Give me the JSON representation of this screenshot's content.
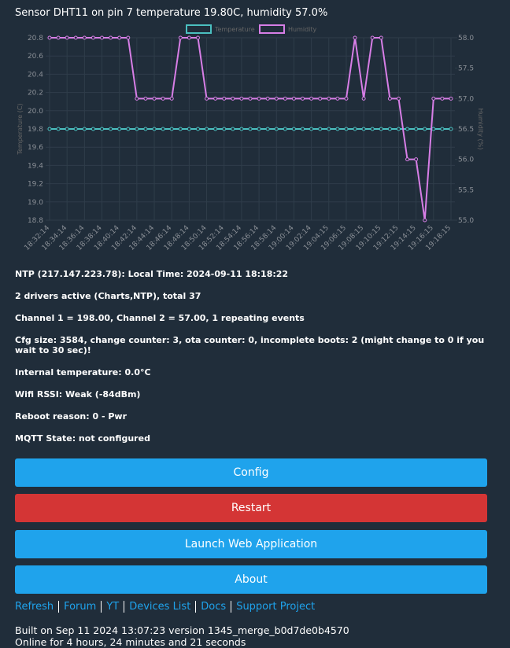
{
  "header": {
    "title": "Sensor DHT11 on pin 7 temperature 19.80C, humidity 57.0%"
  },
  "chart_data": {
    "type": "line",
    "categories": [
      "18:32:14",
      null,
      "18:34:14",
      null,
      "18:36:14",
      null,
      "18:38:14",
      null,
      "18:40:14",
      null,
      "18:42:14",
      null,
      "18:44:14",
      null,
      "18:46:14",
      null,
      "18:48:14",
      null,
      "18:50:14",
      null,
      "18:52:14",
      null,
      "18:54:14",
      null,
      "18:56:14",
      null,
      "18:58:14",
      null,
      "19:00:14",
      null,
      "19:02:14",
      null,
      "19:04:15",
      null,
      "19:06:15",
      null,
      "19:08:15",
      null,
      "19:10:15",
      null,
      "19:12:15",
      null,
      "19:14:15",
      null,
      "19:16:15",
      null,
      "19:18:15"
    ],
    "series": [
      {
        "name": "Temperature",
        "color": "#4bc0c0",
        "values": [
          19.8,
          19.8,
          19.8,
          19.8,
          19.8,
          19.8,
          19.8,
          19.8,
          19.8,
          19.8,
          19.8,
          19.8,
          19.8,
          19.8,
          19.8,
          19.8,
          19.8,
          19.8,
          19.8,
          19.8,
          19.8,
          19.8,
          19.8,
          19.8,
          19.8,
          19.8,
          19.8,
          19.8,
          19.8,
          19.8,
          19.8,
          19.8,
          19.8,
          19.8,
          19.8,
          19.8,
          19.8,
          19.8,
          19.8,
          19.8,
          19.8,
          19.8,
          19.8,
          19.8,
          19.8,
          19.8,
          19.8
        ]
      },
      {
        "name": "Humidity",
        "color": "#d77ee6",
        "axis": "y2",
        "values": [
          58,
          58,
          58,
          58,
          58,
          58,
          58,
          58,
          58,
          58,
          57,
          57,
          57,
          57,
          57,
          58,
          58,
          58,
          57,
          57,
          57,
          57,
          57,
          57,
          57,
          57,
          57,
          57,
          57,
          57,
          57,
          57,
          57,
          57,
          57,
          58,
          57,
          58,
          58,
          57,
          57,
          56,
          56,
          55,
          57,
          57,
          57
        ]
      }
    ],
    "ylabel": "Temperature (C)",
    "y2label": "Humidity (%)",
    "ylim": [
      18.8,
      20.8
    ],
    "yticks": [
      18.8,
      {
        "value": 19,
        "label": "19.0"
      },
      19.2,
      19.4,
      19.6,
      19.8,
      {
        "value": 20,
        "label": "20.0"
      },
      20.2,
      20.4,
      20.6,
      20.8
    ],
    "y2lim": [
      55,
      58
    ],
    "y2ticks": [
      {
        "value": 55,
        "label": "55.0"
      },
      55.5,
      {
        "value": 56,
        "label": "56.0"
      },
      56.5,
      {
        "value": 57,
        "label": "57.0"
      },
      57.5,
      {
        "value": 58,
        "label": "58.0"
      }
    ],
    "grid": true,
    "legend": "top"
  },
  "status": [
    "NTP (217.147.223.78): Local Time: 2024-09-11 18:18:22",
    "2 drivers active (Charts,NTP), total 37",
    "Channel 1 = 198.00, Channel 2 = 57.00, 1 repeating events",
    "Cfg size: 3584, change counter: 3, ota counter: 0, incomplete boots: 2 (might change to 0 if you wait to 30 sec)!",
    "Internal temperature: 0.0°C",
    "Wifi RSSI: Weak (-84dBm)",
    "Reboot reason: 0 - Pwr",
    "MQTT State: not configured"
  ],
  "buttons": [
    "Config",
    "Restart",
    "Launch Web Application",
    "About"
  ],
  "links": [
    "Refresh",
    "Forum",
    "YT",
    "Devices List",
    "Docs",
    "Support Project"
  ],
  "footer": [
    "Built on Sep 11 2024 13:07:23 version 1345_merge_b0d7de0b4570",
    "Online for 4 hours, 24 minutes and 21 seconds"
  ]
}
